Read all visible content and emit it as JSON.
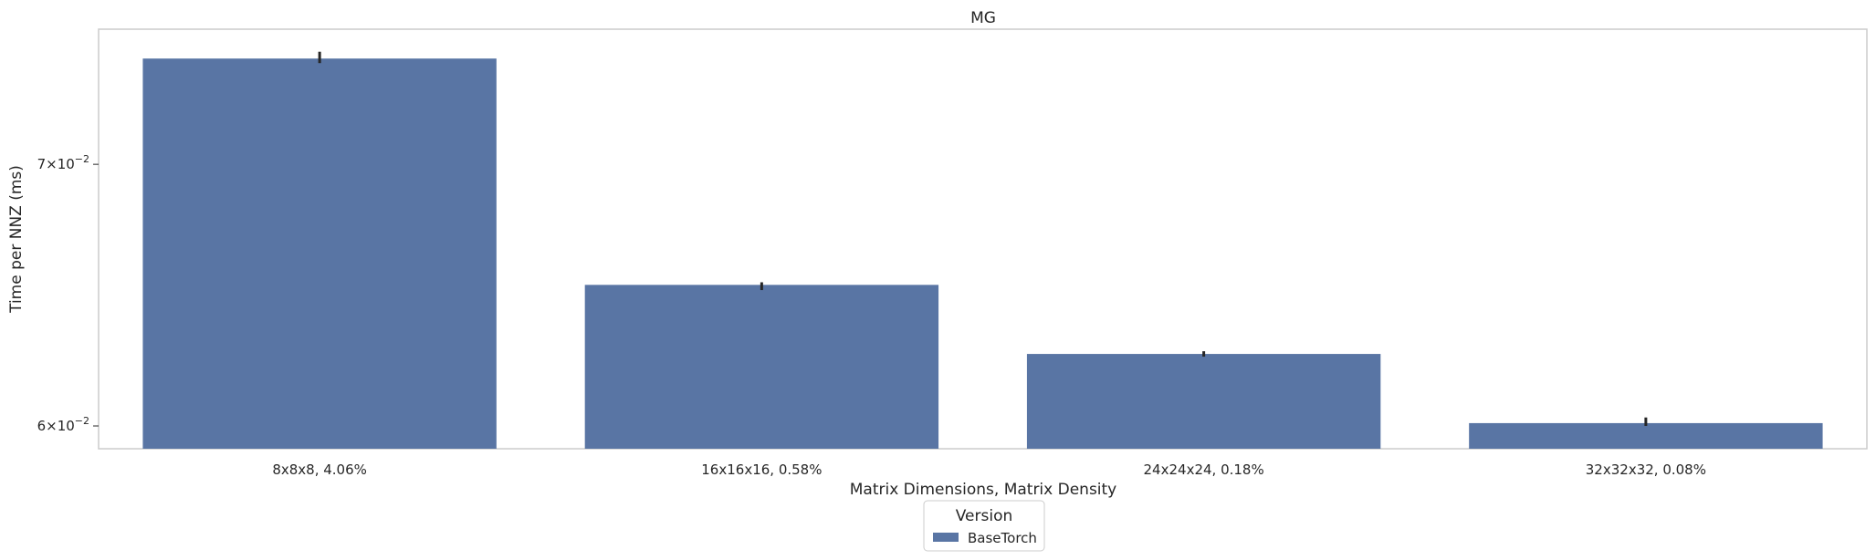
{
  "chart_data": {
    "type": "bar",
    "title": "MG",
    "xlabel": "Matrix Dimensions, Matrix Density",
    "ylabel": "Time per NNZ (ms)",
    "yscale": "log",
    "ylim": [
      0.0592,
      0.0758
    ],
    "yticks": [
      {
        "value": 0.06,
        "base": "6",
        "exp": "−2"
      },
      {
        "value": 0.07,
        "base": "7",
        "exp": "−2"
      }
    ],
    "grid": false,
    "categories": [
      "8x8x8, 4.06%",
      "16x16x16, 0.58%",
      "24x24x24, 0.18%",
      "32x32x32, 0.08%"
    ],
    "series": [
      {
        "name": "BaseTorch",
        "color": "#5975a4",
        "values": [
          0.0745,
          0.0652,
          0.0626,
          0.0601
        ],
        "error_low": [
          0.0743,
          0.065,
          0.0625,
          0.06
        ],
        "error_high": [
          0.0748,
          0.0653,
          0.0627,
          0.0603
        ]
      }
    ],
    "legend": {
      "title": "Version",
      "placement": "bottom-center"
    }
  }
}
